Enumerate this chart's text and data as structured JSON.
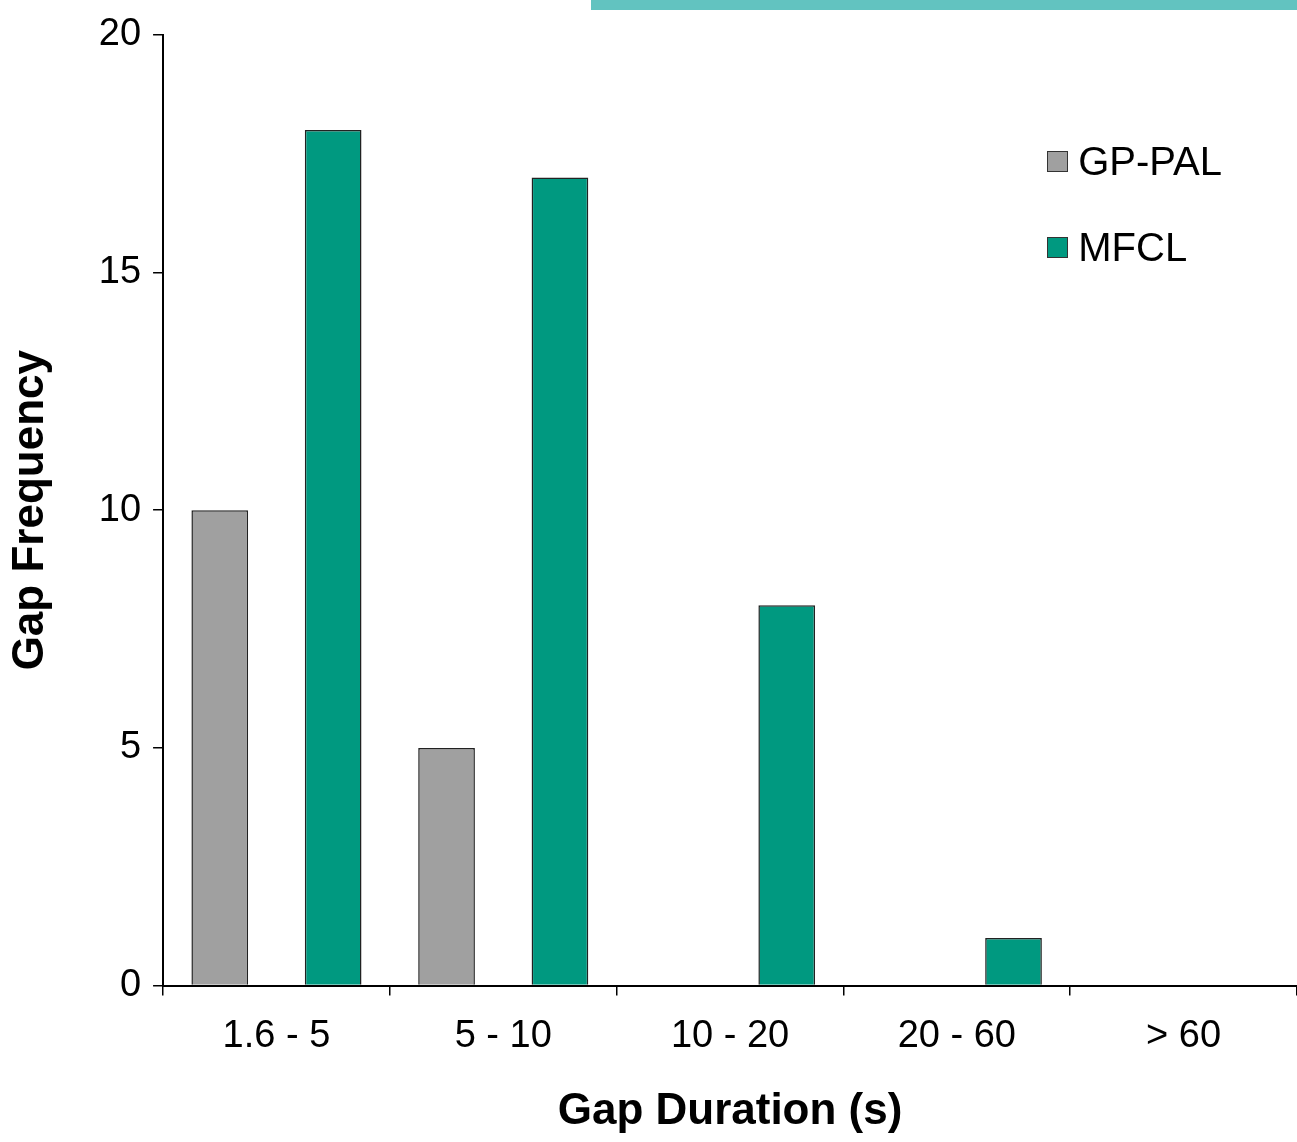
{
  "chart_data": {
    "type": "bar",
    "xlabel": "Gap Duration (s)",
    "ylabel": "Gap Frequency",
    "categories": [
      "1.6 - 5",
      "5 - 10",
      "10 - 20",
      "20 - 60",
      "> 60"
    ],
    "series": [
      {
        "name": "GP-PAL",
        "color": "#a0a0a0",
        "values": [
          10,
          5,
          0,
          0,
          0
        ]
      },
      {
        "name": "MFCL",
        "color": "#009980",
        "values": [
          18,
          17,
          8,
          1,
          0
        ]
      }
    ],
    "ylim": [
      0,
      20
    ],
    "yticks": [
      0,
      5,
      10,
      15,
      20
    ],
    "grid": false,
    "legend": "top right"
  }
}
